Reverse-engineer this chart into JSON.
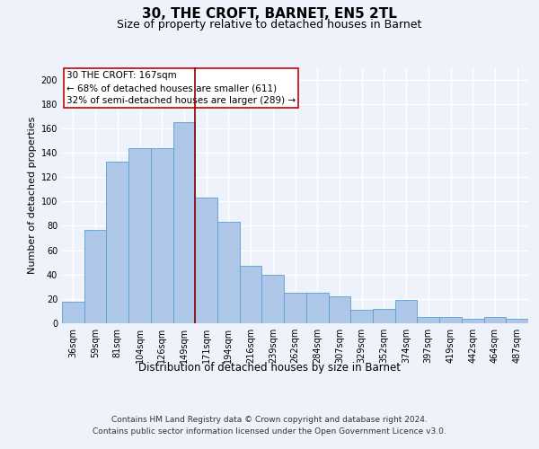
{
  "title": "30, THE CROFT, BARNET, EN5 2TL",
  "subtitle": "Size of property relative to detached houses in Barnet",
  "xlabel": "Distribution of detached houses by size in Barnet",
  "ylabel": "Number of detached properties",
  "categories": [
    "36sqm",
    "59sqm",
    "81sqm",
    "104sqm",
    "126sqm",
    "149sqm",
    "171sqm",
    "194sqm",
    "216sqm",
    "239sqm",
    "262sqm",
    "284sqm",
    "307sqm",
    "329sqm",
    "352sqm",
    "374sqm",
    "397sqm",
    "419sqm",
    "442sqm",
    "464sqm",
    "487sqm"
  ],
  "values": [
    18,
    77,
    133,
    144,
    144,
    165,
    103,
    83,
    47,
    40,
    25,
    25,
    22,
    11,
    12,
    19,
    5,
    5,
    4,
    5,
    4
  ],
  "bar_color": "#aec7e8",
  "bar_edge_color": "#5a9fd4",
  "bar_width": 1.0,
  "property_line_x": 5.5,
  "property_line_color": "#8b0000",
  "annotation_text": "30 THE CROFT: 167sqm\n← 68% of detached houses are smaller (611)\n32% of semi-detached houses are larger (289) →",
  "annotation_box_color": "#ffffff",
  "annotation_box_edge_color": "#cc0000",
  "ylim": [
    0,
    210
  ],
  "yticks": [
    0,
    20,
    40,
    60,
    80,
    100,
    120,
    140,
    160,
    180,
    200
  ],
  "background_color": "#eef2fb",
  "grid_color": "#ffffff",
  "footer_line1": "Contains HM Land Registry data © Crown copyright and database right 2024.",
  "footer_line2": "Contains public sector information licensed under the Open Government Licence v3.0.",
  "title_fontsize": 11,
  "subtitle_fontsize": 9,
  "xlabel_fontsize": 8.5,
  "ylabel_fontsize": 8,
  "tick_fontsize": 7,
  "annotation_fontsize": 7.5,
  "footer_fontsize": 6.5
}
